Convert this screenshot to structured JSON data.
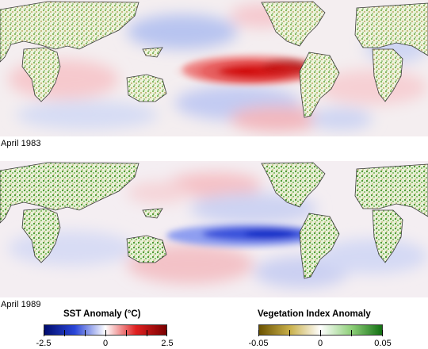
{
  "panels": [
    {
      "caption": "April 1983",
      "sst_pattern": "el-nino-warm"
    },
    {
      "caption": "April 1989",
      "sst_pattern": "la-nina-cool"
    }
  ],
  "legend_sst": {
    "title": "SST Anomaly (°C)",
    "ticks": [
      "-2.5",
      "0",
      "2.5"
    ],
    "colors": [
      "#000c6e",
      "#2a46d8",
      "#ffffff",
      "#e02020",
      "#7a0000"
    ]
  },
  "legend_veg": {
    "title": "Vegetation Index Anomaly",
    "ticks": [
      "-0.05",
      "0",
      "0.05"
    ],
    "colors": [
      "#6b5200",
      "#c9b04a",
      "#ffffff",
      "#8fd07a",
      "#127012"
    ]
  }
}
